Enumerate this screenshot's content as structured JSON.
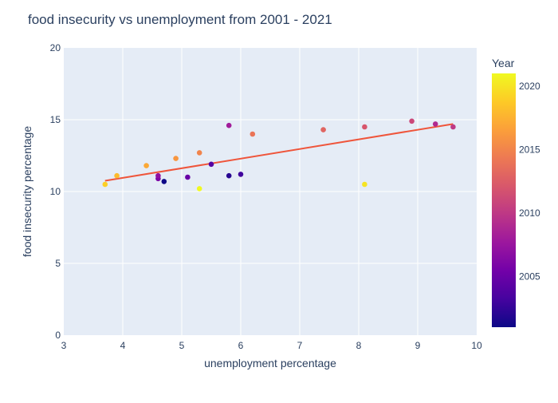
{
  "chart_data": {
    "type": "scatter",
    "title": "food insecurity vs unemployment from 2001 - 2021",
    "xlabel": "unemployment percentage",
    "ylabel": "food insecurity percentage",
    "xlim": [
      3,
      10
    ],
    "ylim": [
      0,
      20
    ],
    "x_ticks": [
      3,
      4,
      5,
      6,
      7,
      8,
      9,
      10
    ],
    "y_ticks": [
      0,
      5,
      10,
      15,
      20
    ],
    "grid": true,
    "colors": {
      "plot_bg": "#e5ecf6",
      "grid": "#ffffff",
      "trendline": "#ef553b",
      "text": "#2a3f5f",
      "colorscale": [
        "#0d0887",
        "#46039f",
        "#7201a8",
        "#9c179e",
        "#bd3786",
        "#d8576b",
        "#ed7953",
        "#fb9f3a",
        "#fdca26",
        "#f0f921"
      ]
    },
    "colorbar": {
      "title": "Year",
      "range": [
        2001,
        2021
      ],
      "ticks": [
        2005,
        2010,
        2015,
        2020
      ]
    },
    "points": [
      {
        "year": 2001,
        "x": 4.7,
        "y": 10.7
      },
      {
        "year": 2002,
        "x": 5.8,
        "y": 11.1
      },
      {
        "year": 2003,
        "x": 6.0,
        "y": 11.2
      },
      {
        "year": 2004,
        "x": 5.5,
        "y": 11.9
      },
      {
        "year": 2005,
        "x": 5.1,
        "y": 11.0
      },
      {
        "year": 2006,
        "x": 4.6,
        "y": 10.9
      },
      {
        "year": 2007,
        "x": 4.6,
        "y": 11.1
      },
      {
        "year": 2008,
        "x": 5.8,
        "y": 14.6
      },
      {
        "year": 2009,
        "x": 9.3,
        "y": 14.7
      },
      {
        "year": 2010,
        "x": 9.6,
        "y": 14.5
      },
      {
        "year": 2011,
        "x": 8.9,
        "y": 14.9
      },
      {
        "year": 2012,
        "x": 8.1,
        "y": 14.5
      },
      {
        "year": 2013,
        "x": 7.4,
        "y": 14.3
      },
      {
        "year": 2014,
        "x": 6.2,
        "y": 14.0
      },
      {
        "year": 2015,
        "x": 5.3,
        "y": 12.7
      },
      {
        "year": 2016,
        "x": 4.9,
        "y": 12.3
      },
      {
        "year": 2017,
        "x": 4.4,
        "y": 11.8
      },
      {
        "year": 2018,
        "x": 3.9,
        "y": 11.1
      },
      {
        "year": 2019,
        "x": 3.7,
        "y": 10.5
      },
      {
        "year": 2020,
        "x": 8.1,
        "y": 10.5
      },
      {
        "year": 2021,
        "x": 5.3,
        "y": 10.2
      }
    ],
    "trendline": {
      "x": [
        3.7,
        9.6
      ],
      "y": [
        10.75,
        14.7
      ]
    }
  }
}
